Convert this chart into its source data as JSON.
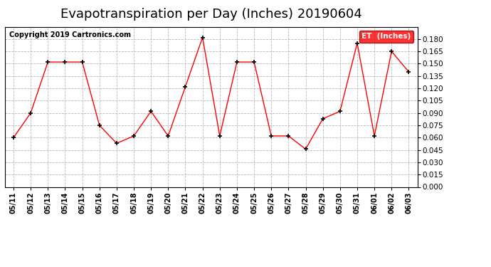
{
  "title": "Evapotranspiration per Day (Inches) 20190604",
  "copyright": "Copyright 2019 Cartronics.com",
  "legend_label": "ET  (Inches)",
  "dates": [
    "05/11",
    "05/12",
    "05/13",
    "05/14",
    "05/15",
    "05/16",
    "05/17",
    "05/18",
    "05/19",
    "05/20",
    "05/21",
    "05/22",
    "05/23",
    "05/24",
    "05/25",
    "05/26",
    "05/27",
    "05/28",
    "05/29",
    "05/30",
    "05/31",
    "06/01",
    "06/02",
    "06/03"
  ],
  "values": [
    0.06,
    0.09,
    0.152,
    0.152,
    0.152,
    0.075,
    0.053,
    0.062,
    0.092,
    0.062,
    0.122,
    0.182,
    0.062,
    0.152,
    0.152,
    0.062,
    0.062,
    0.046,
    0.083,
    0.092,
    0.175,
    0.062,
    0.165,
    0.14
  ],
  "line_color": "red",
  "marker_color": "black",
  "background_color": "#ffffff",
  "grid_color": "#b0b0b0",
  "ylim": [
    0.0,
    0.195
  ],
  "yticks": [
    0.0,
    0.015,
    0.03,
    0.045,
    0.06,
    0.075,
    0.09,
    0.105,
    0.12,
    0.135,
    0.15,
    0.165,
    0.18
  ],
  "title_fontsize": 13,
  "legend_bg": "red",
  "legend_text_color": "white"
}
